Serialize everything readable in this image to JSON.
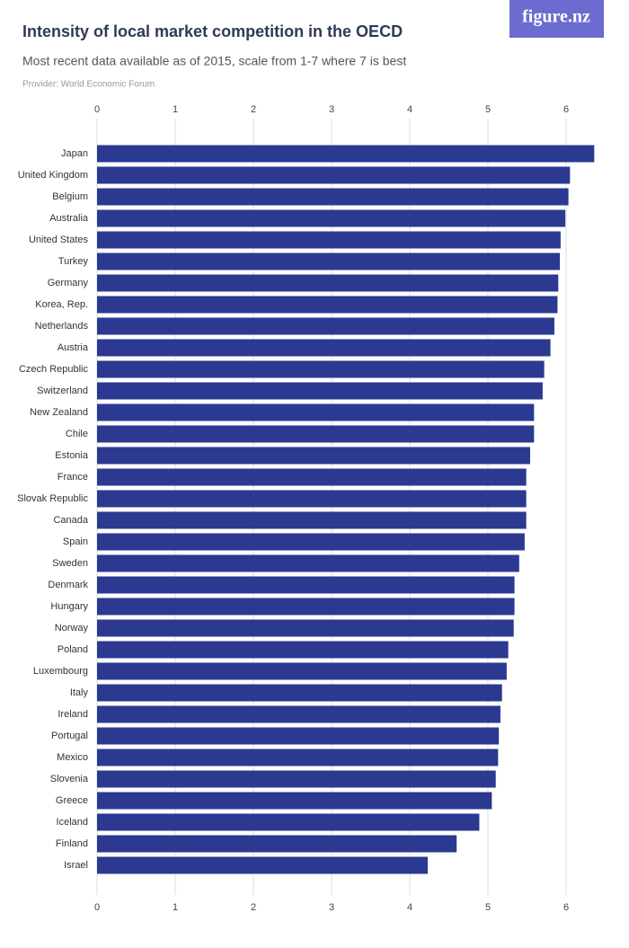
{
  "logo": "figure.nz",
  "chart_data": {
    "type": "bar",
    "orientation": "horizontal",
    "title": "Intensity of local market competition in the OECD",
    "subtitle": "Most recent data available as of 2015, scale from 1-7 where 7 is best",
    "provider": "Provider: World Economic Forum",
    "categories": [
      "Japan",
      "United Kingdom",
      "Belgium",
      "Australia",
      "United States",
      "Turkey",
      "Germany",
      "Korea, Rep.",
      "Netherlands",
      "Austria",
      "Czech Republic",
      "Switzerland",
      "New Zealand",
      "Chile",
      "Estonia",
      "France",
      "Slovak Republic",
      "Canada",
      "Spain",
      "Sweden",
      "Denmark",
      "Hungary",
      "Norway",
      "Poland",
      "Luxembourg",
      "Italy",
      "Ireland",
      "Portugal",
      "Mexico",
      "Slovenia",
      "Greece",
      "Iceland",
      "Finland",
      "Israel"
    ],
    "values": [
      6.36,
      6.05,
      6.03,
      5.99,
      5.93,
      5.92,
      5.9,
      5.89,
      5.85,
      5.8,
      5.72,
      5.7,
      5.59,
      5.59,
      5.54,
      5.49,
      5.49,
      5.49,
      5.47,
      5.4,
      5.34,
      5.34,
      5.33,
      5.26,
      5.24,
      5.18,
      5.16,
      5.14,
      5.13,
      5.1,
      5.05,
      4.89,
      4.6,
      4.23
    ],
    "color": "#2b3990",
    "xlim": [
      0,
      6.5
    ],
    "xticks": [
      0,
      1,
      2,
      3,
      4,
      5,
      6
    ],
    "grid": true
  }
}
